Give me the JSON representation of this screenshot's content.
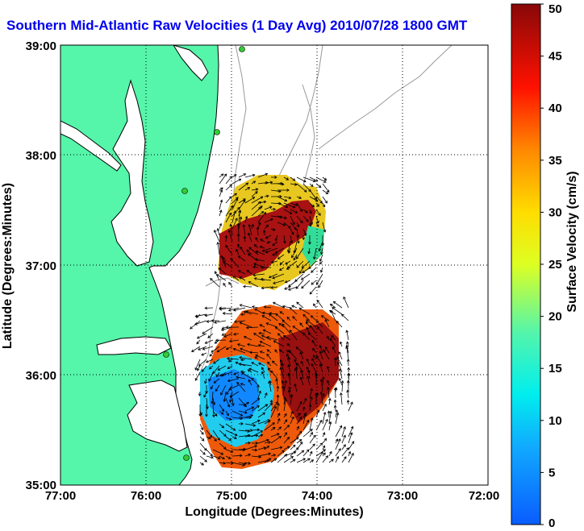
{
  "title": "Southern Mid-Atlantic Raw Velocities (1 Day Avg) 2010/07/28 1800 GMT",
  "axes": {
    "xlabel": "Longitude (Degrees:Minutes)",
    "ylabel": "Latitude (Degrees:Minutes)",
    "x_ticks": [
      "77:00",
      "76:00",
      "75:00",
      "74:00",
      "73:00",
      "72:00"
    ],
    "y_ticks": [
      "39:00",
      "38:00",
      "37:00",
      "36:00",
      "35:00"
    ]
  },
  "colorbar": {
    "label": "Surface Velocity (cm/s)",
    "ticks": [
      "50",
      "45",
      "40",
      "35",
      "30",
      "25",
      "20",
      "15",
      "10",
      "5",
      "0"
    ],
    "range": [
      0,
      50
    ]
  },
  "colors": {
    "land": "#55f5aa",
    "water": "#ffffff",
    "title": "#0000ee",
    "coastline": "#000000",
    "bathymetry": "#999999",
    "station": "#33cc33"
  }
}
